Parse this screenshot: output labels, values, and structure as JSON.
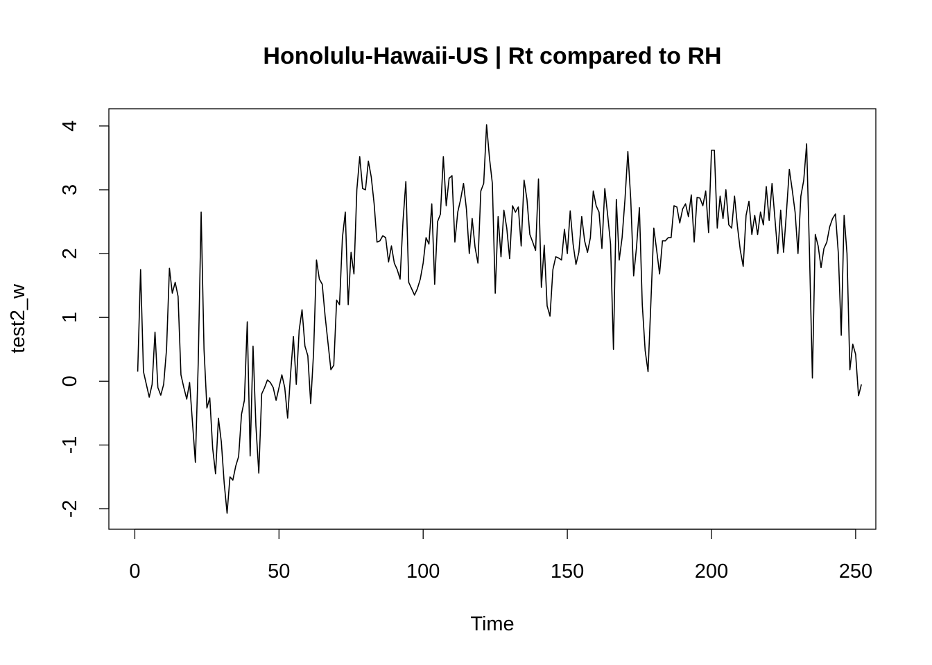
{
  "chart_data": {
    "type": "line",
    "title": "Honolulu-Hawaii-US | Rt compared to RH",
    "xlabel": "Time",
    "ylabel": "test2_w",
    "xlim": [
      -9,
      257
    ],
    "ylim": [
      -2.32,
      4.27
    ],
    "xticks": [
      0,
      50,
      100,
      150,
      200,
      250
    ],
    "yticks": [
      -2,
      -1,
      0,
      1,
      2,
      3,
      4
    ],
    "grid": false,
    "legend": "none",
    "line_color": "#000000",
    "x_start": 1,
    "values": [
      0.15,
      1.75,
      0.15,
      -0.05,
      -0.25,
      -0.05,
      0.77,
      -0.1,
      -0.22,
      -0.05,
      0.5,
      1.77,
      1.38,
      1.55,
      1.33,
      0.1,
      -0.1,
      -0.28,
      -0.02,
      -0.65,
      -1.27,
      0.3,
      2.65,
      0.5,
      -0.42,
      -0.26,
      -1.05,
      -1.45,
      -0.58,
      -0.95,
      -1.6,
      -2.07,
      -1.5,
      -1.55,
      -1.33,
      -1.18,
      -0.52,
      -0.3,
      0.93,
      -1.17,
      0.55,
      -0.7,
      -1.44,
      -0.2,
      -0.1,
      0.02,
      -0.02,
      -0.1,
      -0.3,
      -0.1,
      0.1,
      -0.1,
      -0.58,
      0.1,
      0.7,
      -0.05,
      0.8,
      1.12,
      0.55,
      0.4,
      -0.35,
      0.45,
      1.9,
      1.6,
      1.52,
      1.02,
      0.6,
      0.18,
      0.25,
      1.27,
      1.2,
      2.25,
      2.65,
      1.2,
      2.02,
      1.68,
      3.0,
      3.52,
      3.02,
      3.0,
      3.45,
      3.2,
      2.78,
      2.18,
      2.2,
      2.28,
      2.25,
      1.87,
      2.12,
      1.85,
      1.75,
      1.6,
      2.5,
      3.13,
      1.55,
      1.45,
      1.35,
      1.45,
      1.6,
      1.85,
      2.25,
      2.15,
      2.78,
      1.52,
      2.5,
      2.62,
      3.52,
      2.75,
      3.18,
      3.22,
      2.18,
      2.65,
      2.85,
      3.1,
      2.7,
      2.0,
      2.55,
      2.1,
      1.85,
      2.98,
      3.1,
      4.02,
      3.5,
      3.1,
      1.38,
      2.58,
      1.95,
      2.68,
      2.4,
      1.92,
      2.75,
      2.65,
      2.73,
      2.12,
      3.15,
      2.85,
      2.3,
      2.18,
      2.05,
      3.17,
      1.47,
      2.13,
      1.18,
      1.02,
      1.75,
      1.95,
      1.93,
      1.9,
      2.38,
      2.0,
      2.67,
      2.15,
      1.83,
      2.02,
      2.58,
      2.2,
      2.02,
      2.25,
      2.98,
      2.75,
      2.65,
      2.08,
      3.02,
      2.6,
      2.15,
      0.5,
      2.85,
      1.9,
      2.25,
      2.85,
      3.6,
      2.85,
      1.65,
      2.1,
      2.72,
      1.2,
      0.48,
      0.15,
      1.25,
      2.4,
      2.05,
      1.68,
      2.2,
      2.2,
      2.25,
      2.25,
      2.75,
      2.73,
      2.48,
      2.7,
      2.78,
      2.58,
      2.92,
      2.18,
      2.88,
      2.87,
      2.75,
      2.98,
      2.33,
      3.62,
      3.62,
      2.4,
      2.9,
      2.55,
      3.0,
      2.45,
      2.4,
      2.9,
      2.43,
      2.05,
      1.8,
      2.6,
      2.82,
      2.3,
      2.6,
      2.3,
      2.65,
      2.45,
      3.05,
      2.52,
      3.1,
      2.55,
      2.0,
      2.68,
      2.02,
      2.65,
      3.32,
      3.0,
      2.65,
      2.0,
      2.9,
      3.15,
      3.72,
      2.0,
      0.05,
      2.3,
      2.12,
      1.78,
      2.08,
      2.18,
      2.42,
      2.55,
      2.62,
      2.0,
      0.72,
      2.6,
      2.0,
      0.18,
      0.58,
      0.42,
      -0.23,
      -0.05
    ]
  }
}
